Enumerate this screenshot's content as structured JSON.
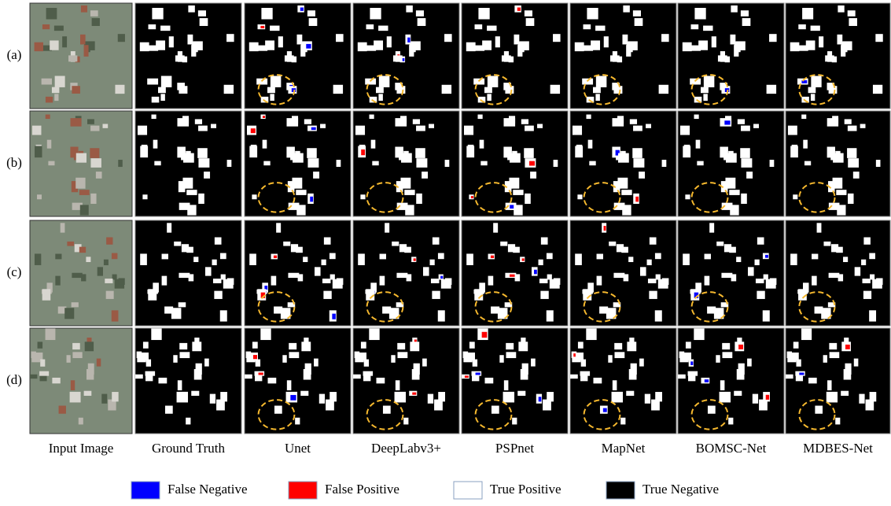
{
  "figure": {
    "row_labels": [
      "(a)",
      "(b)",
      "(c)",
      "(d)"
    ],
    "column_labels": [
      "Input Image",
      "Ground Truth",
      "Unet",
      "DeepLabv3+",
      "PSPnet",
      "MapNet",
      "BOMSC-Net",
      "MDBES-Net"
    ],
    "legend": [
      {
        "label": "False Negative",
        "color": "#0000ff"
      },
      {
        "label": "False Positive",
        "color": "#ff0000"
      },
      {
        "label": "True Positive",
        "color": "#ffffff"
      },
      {
        "label": "True Negative",
        "color": "#000000"
      }
    ]
  }
}
